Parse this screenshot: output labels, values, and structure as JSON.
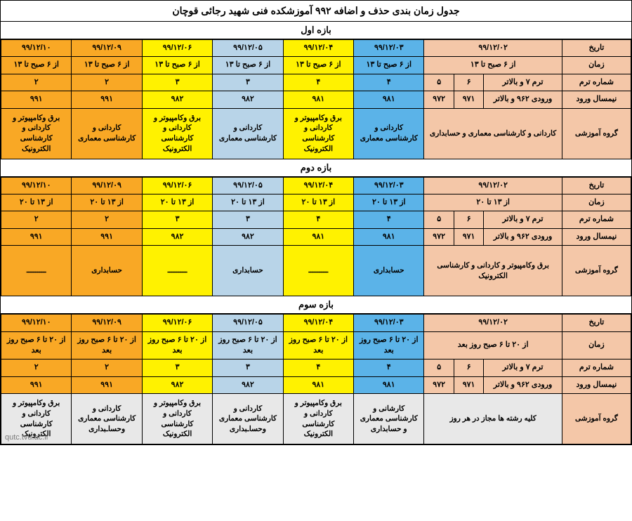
{
  "title": "جدول زمان بندی  حذف و اضافه ۹۹۲ آموزشکده فنی شهید رجائی قوچان",
  "watermark": "qutc.tvu.ac.ir",
  "row_labels": [
    "تاریخ",
    "زمان",
    "شماره ترم",
    "نیمسال ورود",
    "گروه آموزشی"
  ],
  "colors": {
    "peach": "#f4c7a8",
    "blue": "#5bb3e8",
    "yellow": "#fff200",
    "lblue": "#b8d4e8",
    "orange": "#f9a825",
    "grey": "#e8e8e8",
    "white": "#fff"
  },
  "sections": [
    {
      "name": "بازه اول",
      "rows": [
        {
          "label": "تاریخ",
          "cells": [
            {
              "t": "۹۹/۱۲/۰۲",
              "c": "peach",
              "span": 3
            },
            {
              "t": "۹۹/۱۲/۰۳",
              "c": "blue"
            },
            {
              "t": "۹۹/۱۲/۰۴",
              "c": "yellow"
            },
            {
              "t": "۹۹/۱۲/۰۵",
              "c": "lblue"
            },
            {
              "t": "۹۹/۱۲/۰۶",
              "c": "yellow"
            },
            {
              "t": "۹۹/۱۲/۰۹",
              "c": "orange"
            },
            {
              "t": "۹۹/۱۲/۱۰",
              "c": "orange"
            }
          ]
        },
        {
          "label": "زمان",
          "cells": [
            {
              "t": "از ۶ صبح تا ۱۳",
              "c": "peach",
              "span": 3
            },
            {
              "t": "از ۶ صبح تا ۱۳",
              "c": "blue"
            },
            {
              "t": "از ۶ صبح تا ۱۳",
              "c": "yellow"
            },
            {
              "t": "از ۶ صبح تا ۱۳",
              "c": "lblue"
            },
            {
              "t": "از ۶ صبح تا ۱۳",
              "c": "yellow"
            },
            {
              "t": "از ۶ صبح تا ۱۳",
              "c": "orange"
            },
            {
              "t": "از ۶ صبح تا ۱۳",
              "c": "orange"
            }
          ]
        },
        {
          "label": "شماره ترم",
          "cells": [
            {
              "t": "ترم ۷ و بالاتر",
              "c": "peach"
            },
            {
              "t": "۶",
              "c": "peach"
            },
            {
              "t": "۵",
              "c": "peach"
            },
            {
              "t": "۴",
              "c": "blue"
            },
            {
              "t": "۴",
              "c": "yellow"
            },
            {
              "t": "۳",
              "c": "lblue"
            },
            {
              "t": "۳",
              "c": "yellow"
            },
            {
              "t": "۲",
              "c": "orange"
            },
            {
              "t": "۲",
              "c": "orange"
            }
          ]
        },
        {
          "label": "نیمسال ورود",
          "cells": [
            {
              "t": "ورودی ۹۶۲ و بالاتر",
              "c": "peach"
            },
            {
              "t": "۹۷۱",
              "c": "peach"
            },
            {
              "t": "۹۷۲",
              "c": "peach"
            },
            {
              "t": "۹۸۱",
              "c": "blue"
            },
            {
              "t": "۹۸۱",
              "c": "yellow"
            },
            {
              "t": "۹۸۲",
              "c": "lblue"
            },
            {
              "t": "۹۸۲",
              "c": "yellow"
            },
            {
              "t": "۹۹۱",
              "c": "orange"
            },
            {
              "t": "۹۹۱",
              "c": "orange"
            }
          ]
        },
        {
          "label": "گروه آموزشی",
          "dept": true,
          "cells": [
            {
              "t": "کاردانی و کارشناسی معماری و حسابداری",
              "c": "peach",
              "span": 3
            },
            {
              "t": "کاردانی و کارشناسی معماری",
              "c": "blue"
            },
            {
              "t": "برق وکامپیوتر و کاردانی و کارشناسی الکترونیک",
              "c": "yellow"
            },
            {
              "t": "کاردانی و کارشناسی معماری",
              "c": "lblue"
            },
            {
              "t": "برق وکامپیوتر و کاردانی و کارشناسی الکترونیک",
              "c": "yellow"
            },
            {
              "t": "کاردانی و کارشناسی معماری",
              "c": "orange"
            },
            {
              "t": "برق وکامپیوتر و کاردانی و کارشناسی الکترونیک",
              "c": "orange"
            }
          ]
        }
      ]
    },
    {
      "name": "بازه دوم",
      "rows": [
        {
          "label": "تاریخ",
          "cells": [
            {
              "t": "۹۹/۱۲/۰۲",
              "c": "peach",
              "span": 3
            },
            {
              "t": "۹۹/۱۲/۰۳",
              "c": "blue"
            },
            {
              "t": "۹۹/۱۲/۰۴",
              "c": "yellow"
            },
            {
              "t": "۹۹/۱۲/۰۵",
              "c": "lblue"
            },
            {
              "t": "۹۹/۱۲/۰۶",
              "c": "yellow"
            },
            {
              "t": "۹۹/۱۲/۰۹",
              "c": "orange"
            },
            {
              "t": "۹۹/۱۲/۱۰",
              "c": "orange"
            }
          ]
        },
        {
          "label": "زمان",
          "cells": [
            {
              "t": "از ۱۳ تا ۲۰",
              "c": "peach",
              "span": 3
            },
            {
              "t": "از ۱۳ تا ۲۰",
              "c": "blue"
            },
            {
              "t": "از ۱۳ تا ۲۰",
              "c": "yellow"
            },
            {
              "t": "از ۱۳ تا ۲۰",
              "c": "lblue"
            },
            {
              "t": "از ۱۳ تا ۲۰",
              "c": "yellow"
            },
            {
              "t": "از ۱۳ تا ۲۰",
              "c": "orange"
            },
            {
              "t": "از ۱۳ تا ۲۰",
              "c": "orange"
            }
          ]
        },
        {
          "label": "شماره ترم",
          "cells": [
            {
              "t": "ترم ۷ و بالاتر",
              "c": "peach"
            },
            {
              "t": "۶",
              "c": "peach"
            },
            {
              "t": "۵",
              "c": "peach"
            },
            {
              "t": "۴",
              "c": "blue"
            },
            {
              "t": "۴",
              "c": "yellow"
            },
            {
              "t": "۳",
              "c": "lblue"
            },
            {
              "t": "۳",
              "c": "yellow"
            },
            {
              "t": "۲",
              "c": "orange"
            },
            {
              "t": "۲",
              "c": "orange"
            }
          ]
        },
        {
          "label": "نیمسال ورود",
          "cells": [
            {
              "t": "ورودی ۹۶۲ و بالاتر",
              "c": "peach"
            },
            {
              "t": "۹۷۱",
              "c": "peach"
            },
            {
              "t": "۹۷۲",
              "c": "peach"
            },
            {
              "t": "۹۸۱",
              "c": "blue"
            },
            {
              "t": "۹۸۱",
              "c": "yellow"
            },
            {
              "t": "۹۸۲",
              "c": "lblue"
            },
            {
              "t": "۹۸۲",
              "c": "yellow"
            },
            {
              "t": "۹۹۱",
              "c": "orange"
            },
            {
              "t": "۹۹۱",
              "c": "orange"
            }
          ]
        },
        {
          "label": "گروه آموزشی",
          "dept": true,
          "cells": [
            {
              "t": "برق وکامپیوتر و کاردانی و کارشناسی  الکترونیک",
              "c": "peach",
              "span": 3
            },
            {
              "t": "حسابداری",
              "c": "blue"
            },
            {
              "t": "ـــــــــ",
              "c": "yellow"
            },
            {
              "t": "حسابداری",
              "c": "lblue"
            },
            {
              "t": "ـــــــــ",
              "c": "yellow"
            },
            {
              "t": "حسابداری",
              "c": "orange"
            },
            {
              "t": "ـــــــــ",
              "c": "orange"
            }
          ]
        }
      ]
    },
    {
      "name": "بازه سوم",
      "rows": [
        {
          "label": "تاریخ",
          "cells": [
            {
              "t": "۹۹/۱۲/۰۲",
              "c": "peach",
              "span": 3
            },
            {
              "t": "۹۹/۱۲/۰۳",
              "c": "blue"
            },
            {
              "t": "۹۹/۱۲/۰۴",
              "c": "yellow"
            },
            {
              "t": "۹۹/۱۲/۰۵",
              "c": "lblue"
            },
            {
              "t": "۹۹/۱۲/۰۶",
              "c": "yellow"
            },
            {
              "t": "۹۹/۱۲/۰۹",
              "c": "orange"
            },
            {
              "t": "۹۹/۱۲/۱۰",
              "c": "orange"
            }
          ]
        },
        {
          "label": "زمان",
          "cells": [
            {
              "t": "از ۲۰ تا ۶ صبح روز بعد",
              "c": "peach",
              "span": 3
            },
            {
              "t": "از ۲۰ تا ۶ صبح روز بعد",
              "c": "blue"
            },
            {
              "t": "از ۲۰ تا ۶ صبح روز بعد",
              "c": "yellow"
            },
            {
              "t": "از ۲۰ تا ۶ صبح روز بعد",
              "c": "lblue"
            },
            {
              "t": "از ۲۰ تا ۶ صبح روز بعد",
              "c": "yellow"
            },
            {
              "t": "از ۲۰ تا ۶ صبح روز بعد",
              "c": "orange"
            },
            {
              "t": "از ۲۰ تا ۶ صبح روز بعد",
              "c": "orange"
            }
          ]
        },
        {
          "label": "شماره ترم",
          "cells": [
            {
              "t": "ترم ۷ و بالاتر",
              "c": "peach"
            },
            {
              "t": "۶",
              "c": "peach"
            },
            {
              "t": "۵",
              "c": "peach"
            },
            {
              "t": "۴",
              "c": "blue"
            },
            {
              "t": "۴",
              "c": "yellow"
            },
            {
              "t": "۳",
              "c": "lblue"
            },
            {
              "t": "۳",
              "c": "yellow"
            },
            {
              "t": "۲",
              "c": "orange"
            },
            {
              "t": "۲",
              "c": "orange"
            }
          ]
        },
        {
          "label": "نیمسال ورود",
          "cells": [
            {
              "t": "ورودی ۹۶۲ و بالاتر",
              "c": "peach"
            },
            {
              "t": "۹۷۱",
              "c": "peach"
            },
            {
              "t": "۹۷۲",
              "c": "peach"
            },
            {
              "t": "۹۸۱",
              "c": "blue"
            },
            {
              "t": "۹۸۱",
              "c": "yellow"
            },
            {
              "t": "۹۸۲",
              "c": "lblue"
            },
            {
              "t": "۹۸۲",
              "c": "yellow"
            },
            {
              "t": "۹۹۱",
              "c": "orange"
            },
            {
              "t": "۹۹۱",
              "c": "orange"
            }
          ]
        },
        {
          "label": "گروه آموزشی",
          "dept": true,
          "grey": true,
          "cells": [
            {
              "t": "کلیه رشته ها مجاز در هر روز",
              "c": "grey",
              "span": 3
            },
            {
              "t": "کارشانی و  کارشناسی معماری و حسابداری",
              "c": "grey"
            },
            {
              "t": "برق وکامپیوتر و کاردانی و کارشناسی الکترونیک",
              "c": "grey"
            },
            {
              "t": "کاردانی و کارشناسی معماری وحساـبداری",
              "c": "grey"
            },
            {
              "t": "برق وکامپیوتر و کاردانی و کارشناسی الکترونیک",
              "c": "grey"
            },
            {
              "t": "کاردانی و کارشناسی معماری وحساـبداری",
              "c": "grey"
            },
            {
              "t": "برق وکامپیوتر و کاردانی و کارشناسی الکترونیک",
              "c": "grey"
            }
          ]
        }
      ]
    }
  ]
}
